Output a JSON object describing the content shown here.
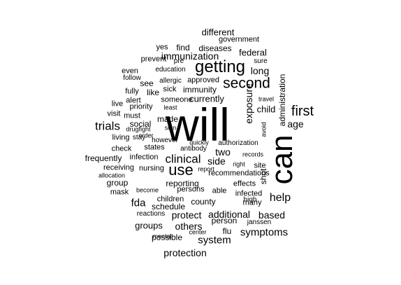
{
  "chart_data": {
    "type": "wordcloud",
    "colors": {
      "text": "#000000",
      "background": "#ffffff"
    },
    "words": [
      "will",
      "can",
      "getting",
      "second",
      "first",
      "use",
      "trials",
      "clinical",
      "help",
      "fda",
      "symptoms",
      "system",
      "protection",
      "others",
      "protect",
      "additional",
      "based",
      "immunization",
      "long",
      "exposure",
      "administration",
      "age",
      "currently",
      "two",
      "side",
      "different",
      "federal",
      "government",
      "diseases",
      "find",
      "yes",
      "sure",
      "pre",
      "prevent",
      "education",
      "even",
      "follow",
      "fully",
      "alert",
      "live",
      "visit",
      "living",
      "check",
      "frequently",
      "receiving",
      "allocation",
      "group",
      "mask",
      "groups",
      "reactions",
      "possible",
      "approved",
      "immunity",
      "sick",
      "allergic",
      "see",
      "like",
      "priority",
      "someone",
      "least",
      "must",
      "social",
      "made",
      "drugfight",
      "sign",
      "stay",
      "order",
      "however",
      "quickly",
      "authorization",
      "states",
      "antibody",
      "infection",
      "nursing",
      "report",
      "recommendations",
      "reporting",
      "effects",
      "right",
      "records",
      "site",
      "shot",
      "avoid",
      "travel",
      "child",
      "infected",
      "many",
      "able",
      "persons",
      "become",
      "children",
      "county",
      "schedule",
      "high",
      "person",
      "janssen",
      "flu",
      "center",
      "mental"
    ]
  }
}
